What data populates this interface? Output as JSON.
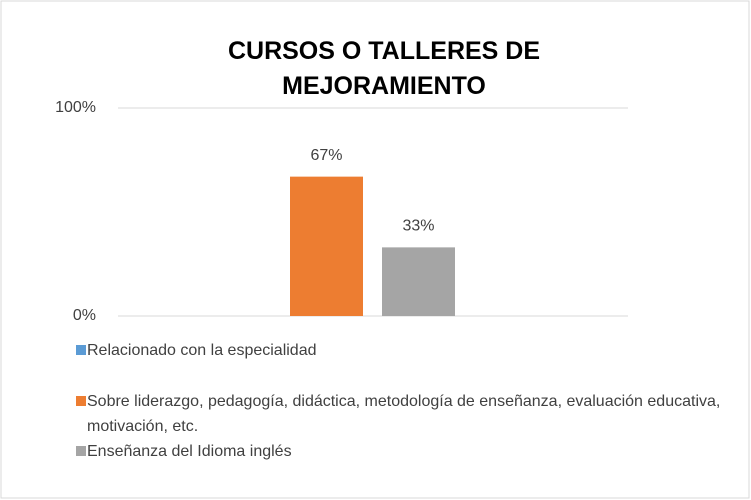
{
  "chart_data": {
    "type": "bar",
    "title": "CURSOS O TALLERES DE MEJORAMIENTO",
    "categories": [
      null
    ],
    "series": [
      {
        "name": "Relacionado con la especialidad",
        "color": "#5b9bd5",
        "values": [
          0
        ]
      },
      {
        "name": "Sobre liderazgo, pedagogía, didáctica, metodología de enseñanza, evaluación educativa, motivación, etc.",
        "color": "#ed7d31",
        "values": [
          67
        ],
        "value_labels": [
          "67%"
        ]
      },
      {
        "name": "Enseñanza del Idioma inglés",
        "color": "#a5a5a5",
        "values": [
          33
        ],
        "value_labels": [
          "33%"
        ]
      }
    ],
    "ylim": [
      0,
      100
    ],
    "yticks": [
      {
        "value": 0,
        "label": "0%"
      },
      {
        "value": 100,
        "label": "100%"
      }
    ],
    "grid": true,
    "legend": "bottom"
  }
}
